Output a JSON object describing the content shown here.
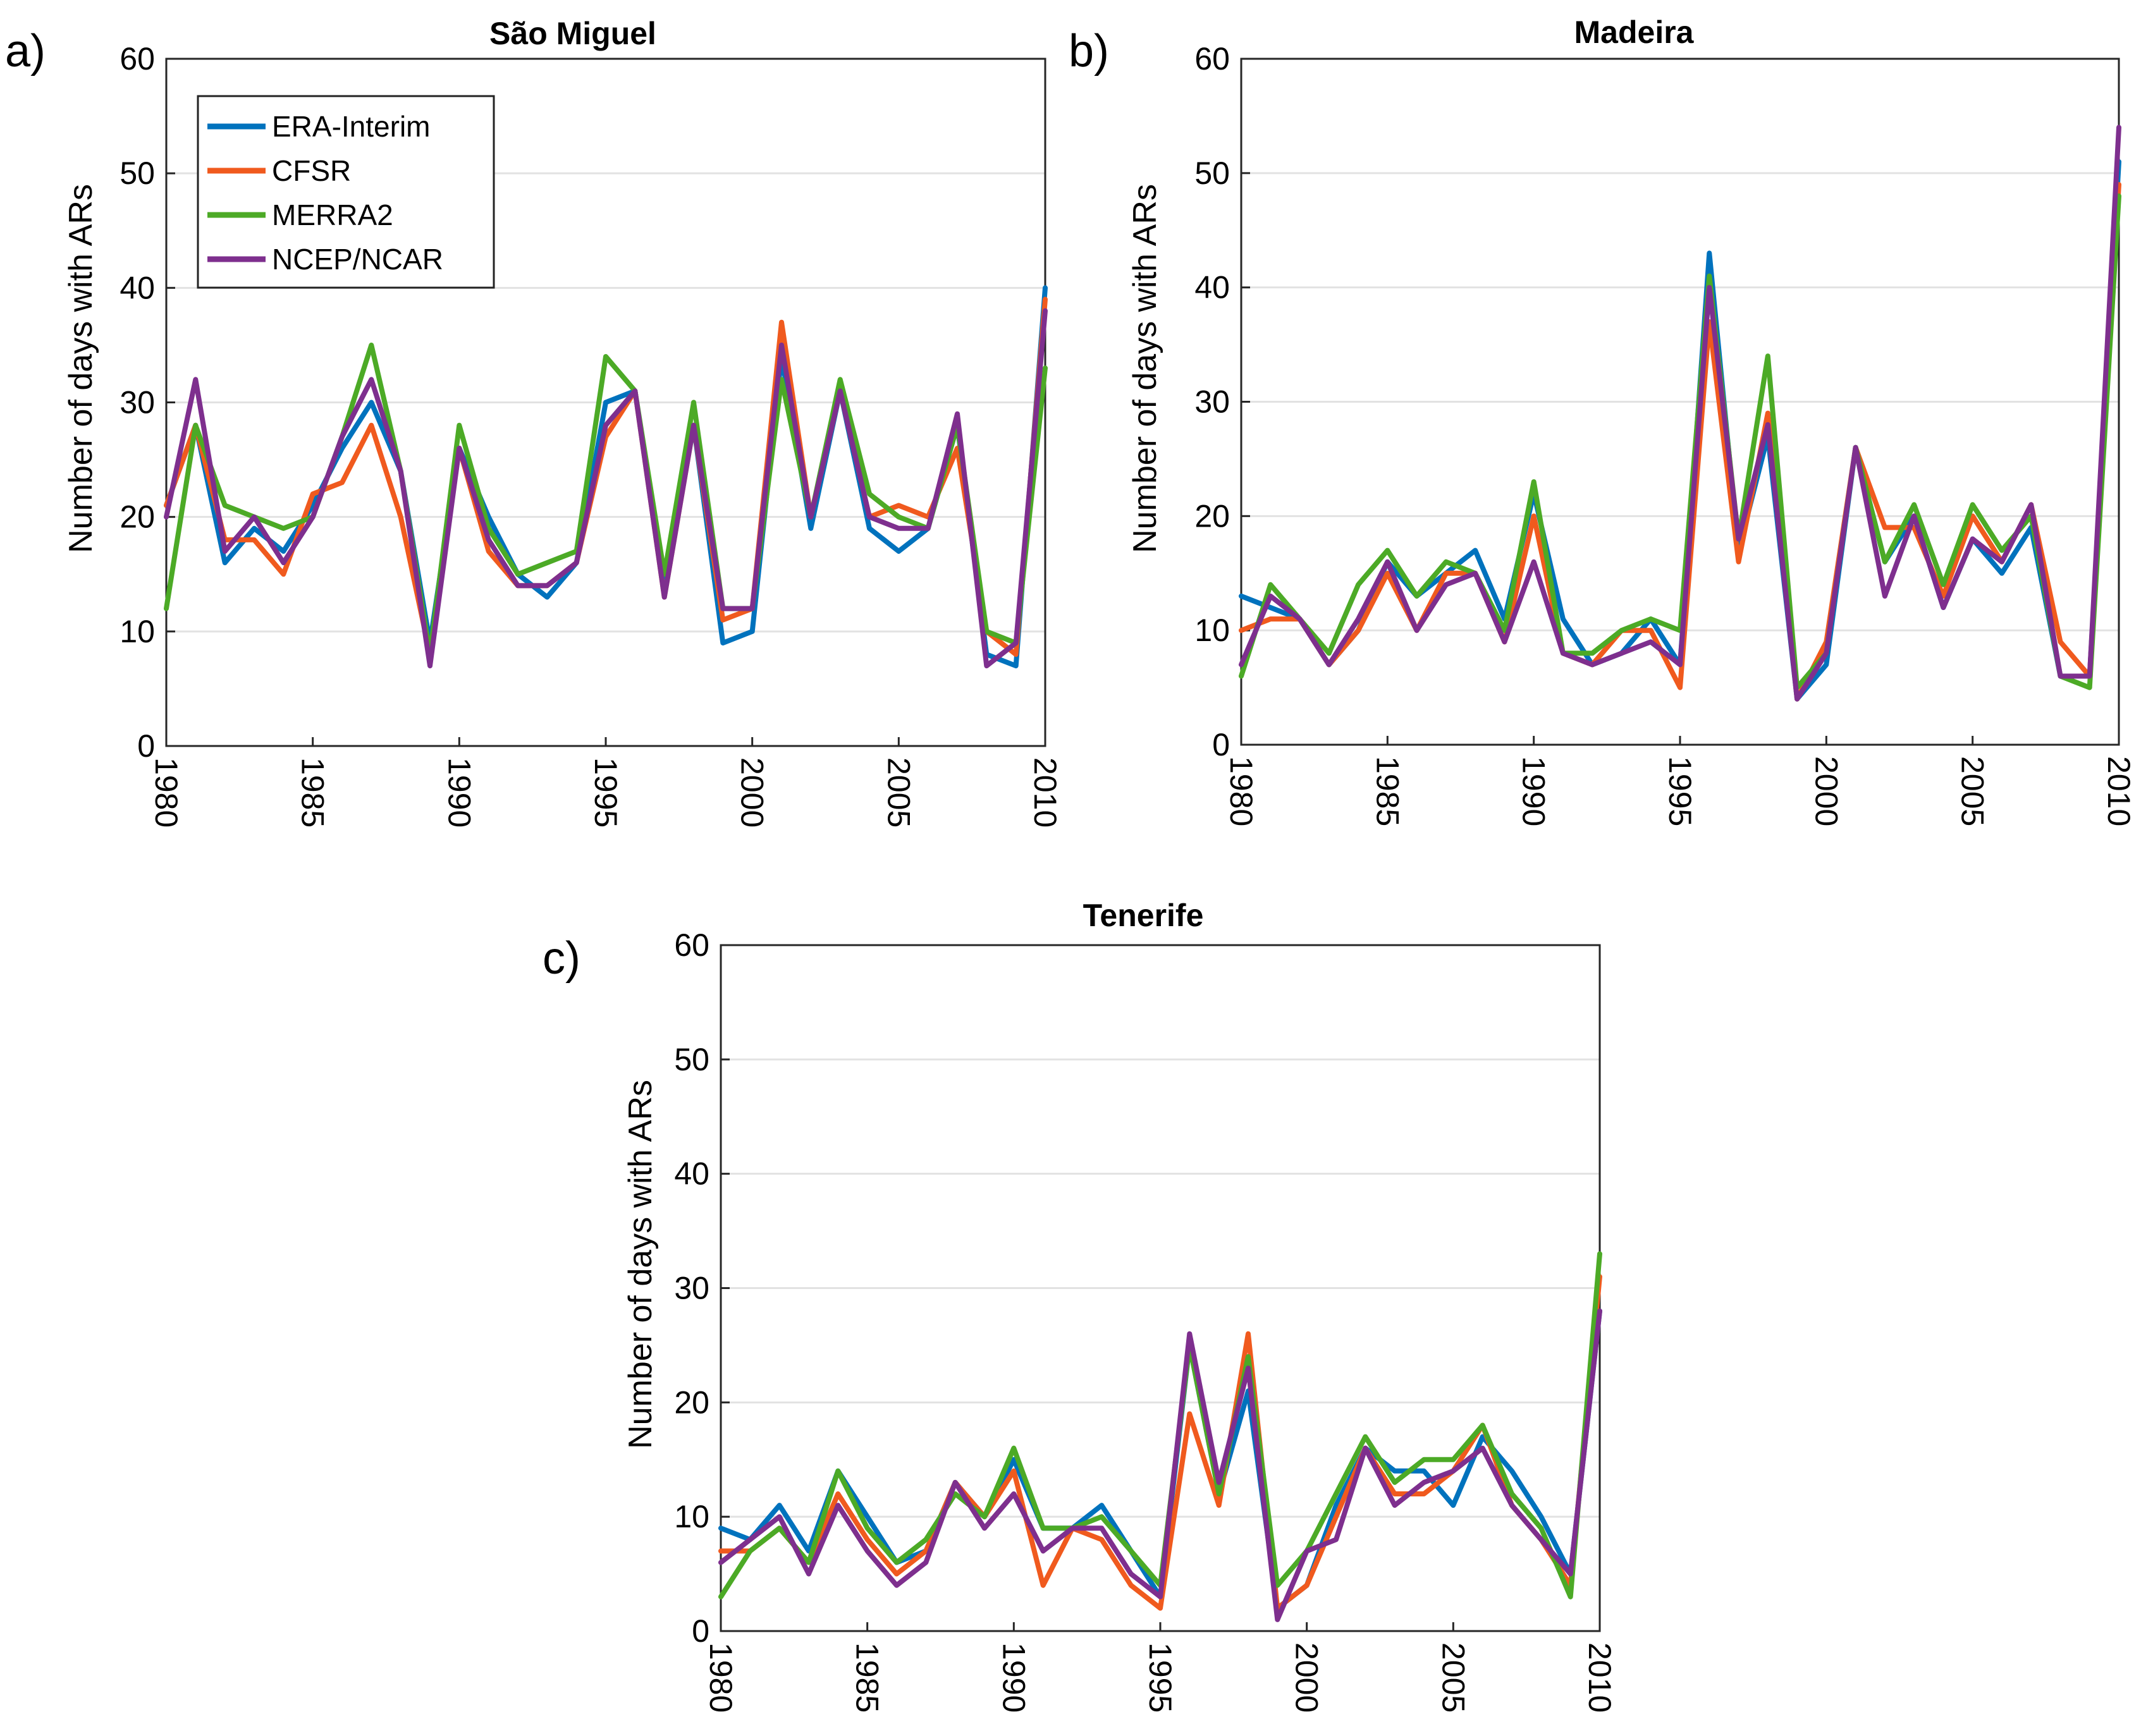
{
  "figure": {
    "series_names": [
      "ERA-Interim",
      "CFSR",
      "MERRA2",
      "NCEP/NCAR"
    ],
    "colors": {
      "ERA-Interim": "#0072BD",
      "CFSR": "#F05A1E",
      "MERRA2": "#4CAA26",
      "NCEP/NCAR": "#7E2F8E"
    }
  },
  "chart_data": [
    {
      "type": "line",
      "panel_label": "a)",
      "title": "São Miguel",
      "xlabel": "",
      "ylabel": "Number of days with ARs",
      "xlim": [
        1980,
        2010
      ],
      "ylim": [
        0,
        60
      ],
      "xticks": [
        1980,
        1985,
        1990,
        1995,
        2000,
        2005,
        2010
      ],
      "yticks": [
        0,
        10,
        20,
        30,
        40,
        50,
        60
      ],
      "grid": true,
      "legend": "top-left",
      "x": [
        1980,
        1981,
        1982,
        1983,
        1984,
        1985,
        1986,
        1987,
        1988,
        1989,
        1990,
        1991,
        1992,
        1993,
        1994,
        1995,
        1996,
        1997,
        1998,
        1999,
        2000,
        2001,
        2002,
        2003,
        2004,
        2005,
        2006,
        2007,
        2008,
        2009,
        2010
      ],
      "series": [
        {
          "name": "ERA-Interim",
          "values": [
            21,
            28,
            16,
            19,
            17,
            21,
            26,
            30,
            24,
            9,
            26,
            20,
            15,
            13,
            16,
            30,
            31,
            14,
            28,
            9,
            10,
            34,
            19,
            31,
            19,
            17,
            19,
            28,
            8,
            7,
            40
          ]
        },
        {
          "name": "CFSR",
          "values": [
            21,
            28,
            18,
            18,
            15,
            22,
            23,
            28,
            20,
            8,
            26,
            17,
            14,
            14,
            16,
            27,
            31,
            13,
            28,
            11,
            12,
            37,
            20,
            31,
            20,
            21,
            20,
            26,
            10,
            8,
            39
          ]
        },
        {
          "name": "MERRA2",
          "values": [
            12,
            28,
            21,
            20,
            19,
            20,
            27,
            35,
            24,
            8,
            28,
            19,
            15,
            16,
            17,
            34,
            31,
            15,
            30,
            12,
            12,
            32,
            20,
            32,
            22,
            20,
            19,
            28,
            10,
            9,
            33
          ]
        },
        {
          "name": "NCEP/NCAR",
          "values": [
            20,
            32,
            17,
            20,
            16,
            20,
            27,
            32,
            24,
            7,
            26,
            18,
            14,
            14,
            16,
            28,
            31,
            13,
            28,
            12,
            12,
            35,
            20,
            31,
            20,
            19,
            19,
            29,
            7,
            9,
            38
          ]
        }
      ]
    },
    {
      "type": "line",
      "panel_label": "b)",
      "title": "Madeira",
      "xlabel": "",
      "ylabel": "Number of days with ARs",
      "xlim": [
        1980,
        2010
      ],
      "ylim": [
        0,
        60
      ],
      "xticks": [
        1980,
        1985,
        1990,
        1995,
        2000,
        2005,
        2010
      ],
      "yticks": [
        0,
        10,
        20,
        30,
        40,
        50,
        60
      ],
      "grid": true,
      "legend": "none",
      "x": [
        1980,
        1981,
        1982,
        1983,
        1984,
        1985,
        1986,
        1987,
        1988,
        1989,
        1990,
        1991,
        1992,
        1993,
        1994,
        1995,
        1996,
        1997,
        1998,
        1999,
        2000,
        2001,
        2002,
        2003,
        2004,
        2005,
        2006,
        2007,
        2008,
        2009,
        2010
      ],
      "series": [
        {
          "name": "ERA-Interim",
          "values": [
            13,
            12,
            11,
            7,
            10,
            16,
            13,
            15,
            17,
            11,
            22,
            11,
            7,
            8,
            11,
            7,
            43,
            17,
            27,
            4,
            7,
            26,
            16,
            20,
            12,
            18,
            15,
            19,
            6,
            6,
            51
          ]
        },
        {
          "name": "CFSR",
          "values": [
            10,
            11,
            11,
            7,
            10,
            15,
            10,
            15,
            15,
            9,
            20,
            8,
            7,
            10,
            10,
            5,
            37,
            16,
            29,
            4,
            9,
            26,
            19,
            19,
            13,
            20,
            16,
            21,
            9,
            6,
            49
          ]
        },
        {
          "name": "MERRA2",
          "values": [
            6,
            14,
            11,
            8,
            14,
            17,
            13,
            16,
            15,
            10,
            23,
            8,
            8,
            10,
            11,
            10,
            41,
            18,
            34,
            5,
            8,
            26,
            16,
            21,
            14,
            21,
            17,
            20,
            6,
            5,
            48
          ]
        },
        {
          "name": "NCEP/NCAR",
          "values": [
            7,
            13,
            11,
            7,
            11,
            16,
            10,
            14,
            15,
            9,
            16,
            8,
            7,
            8,
            9,
            7,
            40,
            18,
            28,
            4,
            8,
            26,
            13,
            20,
            12,
            18,
            16,
            21,
            6,
            6,
            54
          ]
        }
      ]
    },
    {
      "type": "line",
      "panel_label": "c)",
      "title": "Tenerife",
      "xlabel": "",
      "ylabel": "Number of days with ARs",
      "xlim": [
        1980,
        2010
      ],
      "ylim": [
        0,
        60
      ],
      "xticks": [
        1980,
        1985,
        1990,
        1995,
        2000,
        2005,
        2010
      ],
      "yticks": [
        0,
        10,
        20,
        30,
        40,
        50,
        60
      ],
      "grid": true,
      "legend": "none",
      "x": [
        1980,
        1981,
        1982,
        1983,
        1984,
        1985,
        1986,
        1987,
        1988,
        1989,
        1990,
        1991,
        1992,
        1993,
        1994,
        1995,
        1996,
        1997,
        1998,
        1999,
        2000,
        2001,
        2002,
        2003,
        2004,
        2005,
        2006,
        2007,
        2008,
        2009,
        2010
      ],
      "series": [
        {
          "name": "ERA-Interim",
          "values": [
            9,
            8,
            11,
            7,
            14,
            10,
            6,
            7,
            13,
            10,
            15,
            9,
            9,
            11,
            7,
            3,
            25,
            12,
            21,
            2,
            4,
            11,
            16,
            14,
            14,
            11,
            17,
            14,
            10,
            5,
            28
          ]
        },
        {
          "name": "CFSR",
          "values": [
            7,
            7,
            9,
            6,
            12,
            8,
            5,
            7,
            13,
            10,
            14,
            4,
            9,
            8,
            4,
            2,
            19,
            11,
            26,
            2,
            4,
            10,
            16,
            12,
            12,
            14,
            18,
            11,
            8,
            4,
            31
          ]
        },
        {
          "name": "MERRA2",
          "values": [
            3,
            7,
            9,
            6,
            14,
            9,
            6,
            8,
            12,
            10,
            16,
            9,
            9,
            10,
            7,
            4,
            25,
            12,
            24,
            4,
            7,
            12,
            17,
            13,
            15,
            15,
            18,
            12,
            9,
            3,
            33
          ]
        },
        {
          "name": "NCEP/NCAR",
          "values": [
            6,
            8,
            10,
            5,
            11,
            7,
            4,
            6,
            13,
            9,
            12,
            7,
            9,
            9,
            5,
            3,
            26,
            13,
            23,
            1,
            7,
            8,
            16,
            11,
            13,
            14,
            16,
            11,
            8,
            5,
            28
          ]
        }
      ]
    }
  ]
}
